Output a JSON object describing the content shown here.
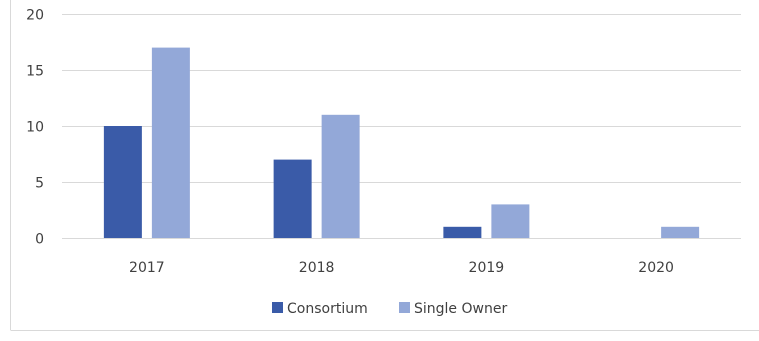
{
  "chart_data": {
    "type": "bar",
    "title": "",
    "xlabel": "",
    "ylabel": "",
    "categories": [
      "2017",
      "2018",
      "2019",
      "2020"
    ],
    "series": [
      {
        "name": "Consortium",
        "values": [
          10,
          7,
          1,
          0
        ],
        "color": "#3a5ba8"
      },
      {
        "name": "Single Owner",
        "values": [
          17,
          11,
          3,
          1
        ],
        "color": "#93a8d8"
      }
    ],
    "ylim": [
      0,
      20
    ],
    "yticks": [
      0,
      5,
      10,
      15,
      20
    ],
    "grid": true,
    "legend_position": "bottom"
  }
}
